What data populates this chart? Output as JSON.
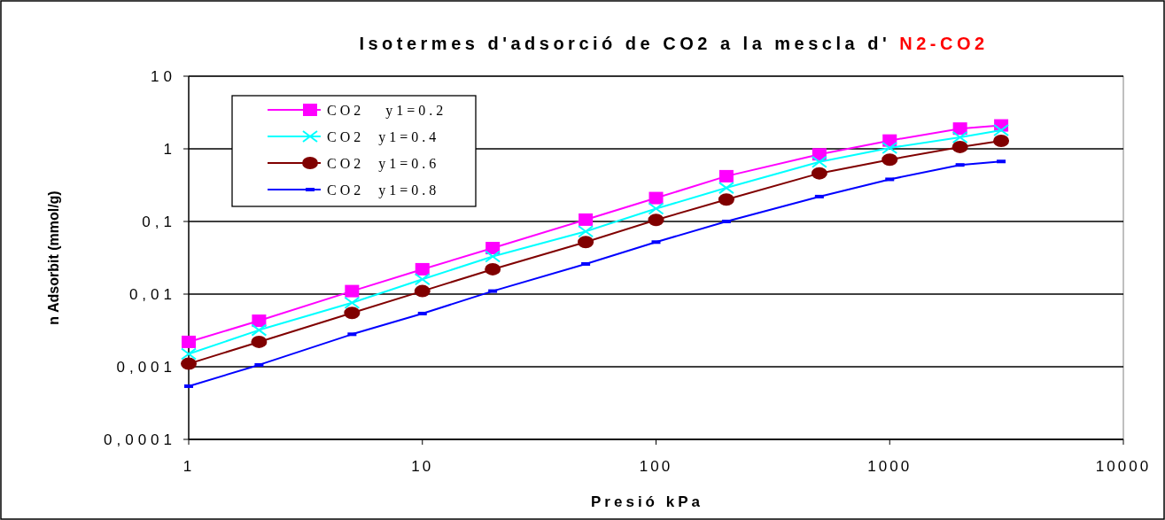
{
  "chart_data": {
    "type": "line",
    "title": "Isotermes d'adsorció de CO2 a la mescla d' N2-CO2",
    "xlabel": "Presió kPa",
    "ylabel": "n Adsorbit (mmol/g)",
    "log": "xy",
    "grid": "y",
    "legend": "top left",
    "x": [
      1,
      2,
      5,
      10,
      20,
      50,
      100,
      200,
      500,
      1000,
      2000,
      3000
    ],
    "xlim": [
      1,
      10000
    ],
    "xticks": [
      1,
      10,
      100,
      1000,
      10000
    ],
    "ylim": [
      0.0001,
      10
    ],
    "yticks": [
      {
        "value": 0.0001,
        "label": "0,0001"
      },
      {
        "value": 0.001,
        "label": "0,001"
      },
      {
        "value": 0.01,
        "label": "0,01"
      },
      {
        "value": 0.1,
        "label": "0,1"
      },
      1,
      10
    ],
    "series": [
      {
        "name": "CO2   y1=0.2",
        "color": "#ff00ff",
        "marker": "square",
        "values": [
          0.0022,
          0.0043,
          0.011,
          0.022,
          0.043,
          0.106,
          0.21,
          0.42,
          0.84,
          1.3,
          1.9,
          2.1
        ]
      },
      {
        "name": "CO2  y1=0.4",
        "color": "#00ffff",
        "marker": "cross",
        "values": [
          0.0015,
          0.0032,
          0.0076,
          0.016,
          0.033,
          0.073,
          0.15,
          0.29,
          0.66,
          1.03,
          1.44,
          1.8
        ]
      },
      {
        "name": "CO2  y1=0.6",
        "color": "#800000",
        "marker": "circle",
        "values": [
          0.0011,
          0.0022,
          0.0055,
          0.011,
          0.022,
          0.052,
          0.105,
          0.2,
          0.46,
          0.71,
          1.06,
          1.29
        ]
      },
      {
        "name": "CO2  y1=0.8",
        "color": "#0000ff",
        "marker": "square",
        "values": [
          0.00054,
          0.00106,
          0.0028,
          0.0054,
          0.011,
          0.026,
          0.052,
          0.1,
          0.22,
          0.38,
          0.6,
          0.67
        ]
      }
    ]
  }
}
